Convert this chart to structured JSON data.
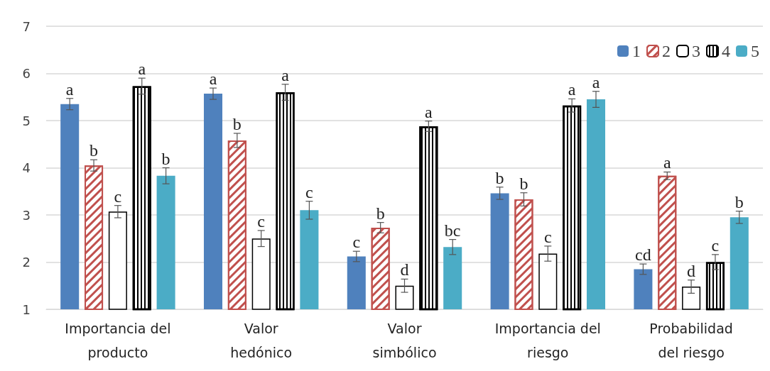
{
  "chart_data": {
    "type": "bar",
    "categories": [
      "Importancia del\nproducto",
      "Valor\nhedónico",
      "Valor\nsimbólico",
      "Importancia del\nriesgo",
      "Probabilidad\ndel riesgo"
    ],
    "series": [
      {
        "name": "1",
        "color": "#4f81bd",
        "values": [
          5.35,
          5.57,
          2.12,
          3.46,
          1.85
        ],
        "errors": [
          0.12,
          0.12,
          0.11,
          0.13,
          0.11
        ],
        "value_labels": [
          "a",
          "a",
          "c",
          "b",
          "cd"
        ]
      },
      {
        "name": "2",
        "color": "#c0504d",
        "values": [
          4.05,
          4.58,
          2.73,
          3.33,
          3.83
        ],
        "errors": [
          0.12,
          0.15,
          0.11,
          0.14,
          0.08
        ],
        "value_labels": [
          "b",
          "b",
          "b",
          "b",
          "a"
        ]
      },
      {
        "name": "3",
        "color": "#ffffff",
        "values": [
          3.07,
          2.5,
          1.5,
          2.18,
          1.48
        ],
        "errors": [
          0.13,
          0.17,
          0.14,
          0.16,
          0.14
        ],
        "value_labels": [
          "c",
          "c",
          "d",
          "c",
          "d"
        ]
      },
      {
        "name": "4",
        "color": "#000000",
        "values": [
          5.73,
          5.6,
          4.88,
          5.32,
          2.0
        ],
        "errors": [
          0.17,
          0.17,
          0.11,
          0.14,
          0.16
        ],
        "value_labels": [
          "a",
          "a",
          "a",
          "a",
          "c"
        ]
      },
      {
        "name": "5",
        "color": "#4bacc6",
        "values": [
          3.83,
          3.1,
          2.32,
          5.45,
          2.95
        ],
        "errors": [
          0.17,
          0.19,
          0.16,
          0.17,
          0.13
        ],
        "value_labels": [
          "b",
          "c",
          "bc",
          "a",
          "b"
        ]
      }
    ],
    "ylim": [
      1,
      7
    ],
    "yticks": [
      1,
      2,
      3,
      4,
      5,
      6,
      7
    ],
    "grid": "y",
    "legend": "top right"
  }
}
